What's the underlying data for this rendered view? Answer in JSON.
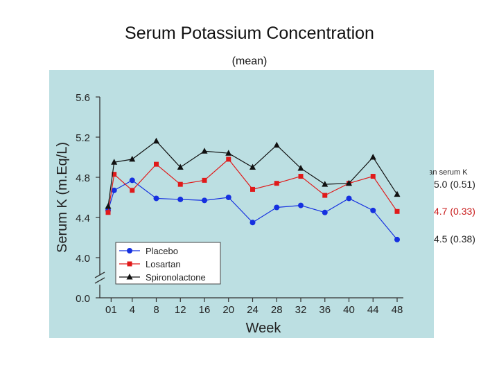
{
  "slide": {
    "title": "Serum Potassium Concentration",
    "subtitle": "(mean)"
  },
  "colors": {
    "panel_bg": "#bcdfe2",
    "placebo": "#1530e0",
    "losartan": "#e01a1a",
    "spironolactone": "#111111"
  },
  "side_panel": {
    "heading": "Mean serum K",
    "values": [
      {
        "series": "Spironolactone",
        "text": "5.0 (0.51)"
      },
      {
        "series": "Losartan",
        "text": "4.7 (0.33)"
      },
      {
        "series": "Placebo",
        "text": "4.5 (0.38)"
      }
    ]
  },
  "chart_data": {
    "type": "line",
    "xlabel": "Week",
    "ylabel": "Serum K (m.Eq/L)",
    "x_tick_labels": [
      "01",
      "4",
      "8",
      "12",
      "16",
      "20",
      "24",
      "28",
      "32",
      "36",
      "40",
      "44",
      "48"
    ],
    "y_tick_labels": [
      "0.0",
      "4.0",
      "4.4",
      "4.8",
      "5.2",
      "5.6"
    ],
    "ylim": [
      4.0,
      5.6
    ],
    "axis_break": true,
    "series": [
      {
        "name": "Placebo",
        "marker": "circle",
        "x": [
          0,
          1,
          4,
          8,
          12,
          16,
          20,
          24,
          28,
          32,
          36,
          40,
          44,
          48
        ],
        "values": [
          4.47,
          4.67,
          4.77,
          4.59,
          4.58,
          4.57,
          4.6,
          4.35,
          4.5,
          4.52,
          4.45,
          4.59,
          4.47,
          4.18
        ]
      },
      {
        "name": "Losartan",
        "marker": "square",
        "x": [
          0,
          1,
          4,
          8,
          12,
          16,
          20,
          24,
          28,
          32,
          36,
          40,
          44,
          48
        ],
        "values": [
          4.45,
          4.83,
          4.67,
          4.93,
          4.73,
          4.77,
          4.98,
          4.68,
          4.74,
          4.81,
          4.62,
          4.74,
          4.81,
          4.46
        ]
      },
      {
        "name": "Spironolactone",
        "marker": "triangle",
        "x": [
          0,
          1,
          4,
          8,
          12,
          16,
          20,
          24,
          28,
          32,
          36,
          40,
          44,
          48
        ],
        "values": [
          4.51,
          4.95,
          4.98,
          5.16,
          4.9,
          5.06,
          5.04,
          4.9,
          5.12,
          4.89,
          4.73,
          4.74,
          5.0,
          4.63
        ]
      }
    ],
    "legend": {
      "position": "bottom-left",
      "entries": [
        "Placebo",
        "Losartan",
        "Spironolactone"
      ]
    }
  }
}
